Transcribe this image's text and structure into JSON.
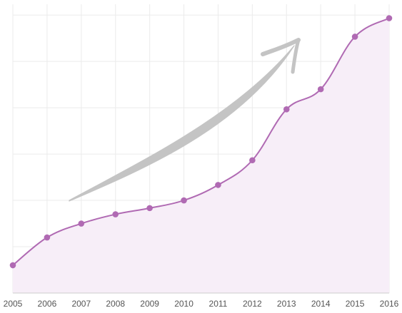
{
  "chart_data": {
    "type": "area",
    "title": "",
    "xlabel": "",
    "ylabel": "",
    "categories": [
      "2005",
      "2006",
      "2007",
      "2008",
      "2009",
      "2010",
      "2011",
      "2012",
      "2013",
      "2014",
      "2015",
      "2016"
    ],
    "series": [
      {
        "values": [
          0.06,
          0.24,
          0.33,
          0.39,
          0.43,
          0.48,
          0.58,
          0.74,
          1.07,
          1.2,
          1.54,
          1.66
        ]
      }
    ],
    "ylim": [
      -0.12,
      1.75
    ],
    "yticks": [
      0.18,
      0.48,
      0.78,
      1.08,
      1.38,
      1.68
    ],
    "grid": true,
    "legend": "none",
    "annotations": [
      {
        "type": "trend-arrow",
        "direction": "up-right"
      }
    ],
    "colors": {
      "line": "#b06ab3",
      "marker": "#b06ab3",
      "area_fill": "#f7eef8",
      "grid": "#ebebeb",
      "axis": "#cccccc",
      "tick_text": "#555555",
      "arrow": "#c4c4c4"
    }
  }
}
